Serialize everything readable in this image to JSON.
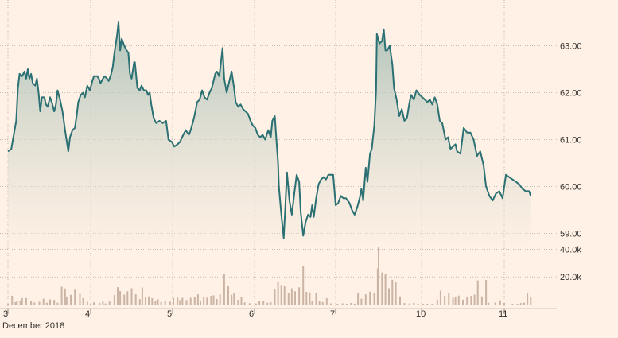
{
  "chart_data": {
    "type": "area",
    "title": "",
    "xlabel": "",
    "ylabel": "",
    "x_ticks": [
      "3",
      "4",
      "5",
      "6",
      "7",
      "10",
      "11"
    ],
    "x_period_label": "December 2018",
    "y_ticks": [
      "59.00",
      "60.00",
      "61.00",
      "62.00",
      "63.00"
    ],
    "ylim": [
      58.6,
      63.55
    ],
    "grid": true,
    "colors": {
      "line": "#2b7173",
      "fill_top": "#a5bdb3",
      "fill_bottom": "#f6ebe0",
      "volume": "#cbb4a4",
      "background": "#fff1e5"
    },
    "price": [
      [
        0.0,
        60.75
      ],
      [
        0.04,
        60.8
      ],
      [
        0.07,
        61.1
      ],
      [
        0.1,
        61.4
      ],
      [
        0.12,
        62.1
      ],
      [
        0.14,
        62.4
      ],
      [
        0.17,
        62.35
      ],
      [
        0.2,
        62.45
      ],
      [
        0.22,
        62.3
      ],
      [
        0.24,
        62.5
      ],
      [
        0.26,
        62.3
      ],
      [
        0.28,
        62.4
      ],
      [
        0.3,
        62.2
      ],
      [
        0.33,
        62.15
      ],
      [
        0.35,
        62.3
      ],
      [
        0.37,
        62.0
      ],
      [
        0.39,
        61.6
      ],
      [
        0.41,
        61.9
      ],
      [
        0.44,
        61.9
      ],
      [
        0.46,
        61.75
      ],
      [
        0.48,
        61.7
      ],
      [
        0.51,
        61.9
      ],
      [
        0.53,
        61.8
      ],
      [
        0.56,
        61.6
      ],
      [
        0.58,
        61.75
      ],
      [
        0.6,
        62.05
      ],
      [
        0.63,
        61.85
      ],
      [
        0.66,
        61.6
      ],
      [
        0.69,
        61.2
      ],
      [
        0.73,
        60.75
      ],
      [
        0.75,
        61.05
      ],
      [
        0.78,
        61.2
      ],
      [
        0.81,
        61.25
      ],
      [
        0.83,
        61.5
      ],
      [
        0.85,
        61.8
      ],
      [
        0.88,
        61.95
      ],
      [
        0.91,
        62.0
      ],
      [
        0.93,
        61.9
      ],
      [
        0.96,
        62.15
      ],
      [
        0.99,
        62.05
      ],
      [
        1.02,
        62.25
      ],
      [
        1.04,
        62.35
      ],
      [
        1.08,
        62.35
      ],
      [
        1.1,
        62.3
      ],
      [
        1.12,
        62.2
      ],
      [
        1.15,
        62.3
      ],
      [
        1.17,
        62.35
      ],
      [
        1.2,
        62.3
      ],
      [
        1.22,
        62.25
      ],
      [
        1.25,
        62.4
      ],
      [
        1.27,
        62.55
      ],
      [
        1.29,
        62.85
      ],
      [
        1.32,
        63.2
      ],
      [
        1.34,
        63.5
      ],
      [
        1.36,
        62.9
      ],
      [
        1.38,
        63.15
      ],
      [
        1.41,
        63.0
      ],
      [
        1.44,
        62.9
      ],
      [
        1.46,
        62.85
      ],
      [
        1.48,
        62.4
      ],
      [
        1.5,
        62.3
      ],
      [
        1.53,
        62.65
      ],
      [
        1.54,
        62.65
      ],
      [
        1.57,
        62.1
      ],
      [
        1.6,
        62.05
      ],
      [
        1.62,
        62.15
      ],
      [
        1.65,
        62.05
      ],
      [
        1.68,
        62.05
      ],
      [
        1.7,
        61.95
      ],
      [
        1.72,
        62.0
      ],
      [
        1.74,
        61.75
      ],
      [
        1.77,
        61.45
      ],
      [
        1.8,
        61.35
      ],
      [
        1.84,
        61.4
      ],
      [
        1.88,
        61.35
      ],
      [
        1.92,
        61.4
      ],
      [
        1.95,
        61.0
      ],
      [
        1.99,
        60.95
      ],
      [
        2.02,
        60.85
      ],
      [
        2.06,
        60.9
      ],
      [
        2.09,
        60.95
      ],
      [
        2.13,
        61.1
      ],
      [
        2.16,
        61.2
      ],
      [
        2.2,
        61.1
      ],
      [
        2.22,
        61.2
      ],
      [
        2.26,
        61.45
      ],
      [
        2.3,
        61.8
      ],
      [
        2.33,
        61.85
      ],
      [
        2.36,
        62.05
      ],
      [
        2.39,
        61.9
      ],
      [
        2.42,
        61.85
      ],
      [
        2.45,
        62.0
      ],
      [
        2.48,
        62.1
      ],
      [
        2.52,
        62.4
      ],
      [
        2.54,
        62.45
      ],
      [
        2.57,
        62.35
      ],
      [
        2.59,
        62.65
      ],
      [
        2.61,
        62.95
      ],
      [
        2.63,
        62.3
      ],
      [
        2.66,
        62.0
      ],
      [
        2.7,
        62.3
      ],
      [
        2.72,
        62.45
      ],
      [
        2.75,
        62.1
      ],
      [
        2.77,
        61.8
      ],
      [
        2.8,
        61.7
      ],
      [
        2.83,
        61.75
      ],
      [
        2.86,
        61.65
      ],
      [
        2.89,
        61.6
      ],
      [
        2.92,
        61.55
      ],
      [
        2.95,
        61.4
      ],
      [
        2.98,
        61.3
      ],
      [
        3.01,
        61.25
      ],
      [
        3.04,
        61.1
      ],
      [
        3.07,
        61.05
      ],
      [
        3.1,
        61.1
      ],
      [
        3.13,
        61.0
      ],
      [
        3.17,
        61.2
      ],
      [
        3.2,
        61.05
      ],
      [
        3.22,
        61.4
      ],
      [
        3.25,
        61.5
      ],
      [
        3.27,
        61.0
      ],
      [
        3.29,
        60.5
      ],
      [
        3.3,
        60.0
      ],
      [
        3.33,
        59.4
      ],
      [
        3.36,
        58.9
      ],
      [
        3.38,
        59.6
      ],
      [
        3.4,
        60.3
      ],
      [
        3.43,
        59.7
      ],
      [
        3.46,
        59.4
      ],
      [
        3.49,
        59.85
      ],
      [
        3.52,
        60.25
      ],
      [
        3.55,
        60.1
      ],
      [
        3.57,
        59.45
      ],
      [
        3.6,
        58.95
      ],
      [
        3.63,
        59.25
      ],
      [
        3.66,
        59.4
      ],
      [
        3.69,
        59.35
      ],
      [
        3.71,
        59.6
      ],
      [
        3.73,
        59.35
      ],
      [
        3.76,
        59.75
      ],
      [
        3.79,
        60.05
      ],
      [
        3.82,
        60.15
      ],
      [
        3.85,
        60.2
      ],
      [
        3.88,
        60.15
      ],
      [
        3.91,
        60.25
      ],
      [
        3.94,
        60.25
      ],
      [
        3.97,
        60.25
      ],
      [
        4.0,
        59.6
      ],
      [
        4.03,
        59.65
      ],
      [
        4.06,
        59.8
      ],
      [
        4.09,
        59.75
      ],
      [
        4.12,
        59.75
      ],
      [
        4.16,
        59.65
      ],
      [
        4.19,
        59.5
      ],
      [
        4.22,
        59.4
      ],
      [
        4.25,
        59.55
      ],
      [
        4.28,
        59.75
      ],
      [
        4.3,
        59.95
      ],
      [
        4.32,
        59.7
      ],
      [
        4.35,
        60.4
      ],
      [
        4.37,
        60.1
      ],
      [
        4.4,
        60.7
      ],
      [
        4.42,
        60.8
      ],
      [
        4.45,
        61.3
      ],
      [
        4.47,
        62.05
      ],
      [
        4.48,
        63.25
      ],
      [
        4.51,
        63.05
      ],
      [
        4.54,
        63.1
      ],
      [
        4.56,
        63.35
      ],
      [
        4.58,
        62.9
      ],
      [
        4.6,
        62.9
      ],
      [
        4.63,
        63.0
      ],
      [
        4.66,
        62.6
      ],
      [
        4.68,
        62.1
      ],
      [
        4.71,
        61.85
      ],
      [
        4.74,
        61.5
      ],
      [
        4.77,
        61.65
      ],
      [
        4.8,
        61.4
      ],
      [
        4.83,
        61.45
      ],
      [
        4.86,
        61.8
      ],
      [
        4.88,
        61.95
      ],
      [
        4.91,
        61.85
      ],
      [
        4.94,
        62.05
      ],
      [
        4.98,
        61.95
      ],
      [
        5.01,
        61.9
      ],
      [
        5.04,
        61.85
      ],
      [
        5.07,
        61.8
      ],
      [
        5.1,
        61.85
      ],
      [
        5.13,
        61.75
      ],
      [
        5.16,
        61.9
      ],
      [
        5.19,
        61.75
      ],
      [
        5.22,
        61.4
      ],
      [
        5.25,
        61.35
      ],
      [
        5.29,
        61.0
      ],
      [
        5.32,
        61.05
      ],
      [
        5.35,
        60.8
      ],
      [
        5.38,
        60.85
      ],
      [
        5.41,
        60.9
      ],
      [
        5.43,
        60.75
      ],
      [
        5.47,
        60.7
      ],
      [
        5.51,
        61.25
      ],
      [
        5.55,
        61.15
      ],
      [
        5.59,
        61.15
      ],
      [
        5.63,
        61.0
      ],
      [
        5.67,
        60.65
      ],
      [
        5.71,
        60.75
      ],
      [
        5.75,
        60.45
      ],
      [
        5.78,
        60.0
      ],
      [
        5.82,
        59.8
      ],
      [
        5.86,
        59.7
      ],
      [
        5.9,
        59.85
      ],
      [
        5.94,
        59.9
      ],
      [
        5.98,
        59.75
      ],
      [
        6.02,
        60.25
      ],
      [
        6.06,
        60.2
      ],
      [
        6.1,
        60.15
      ],
      [
        6.14,
        60.1
      ],
      [
        6.18,
        60.05
      ],
      [
        6.22,
        59.95
      ],
      [
        6.26,
        59.9
      ],
      [
        6.3,
        59.9
      ],
      [
        6.32,
        59.8
      ]
    ],
    "volume_ticks": [
      "20.0k",
      "40.0k"
    ],
    "volume_max": 42000,
    "volume": [
      [
        0.0,
        500
      ],
      [
        0.05,
        6400
      ],
      [
        0.09,
        1800
      ],
      [
        0.11,
        2900
      ],
      [
        0.15,
        3000
      ],
      [
        0.17,
        4700
      ],
      [
        0.22,
        4700
      ],
      [
        0.28,
        2600
      ],
      [
        0.32,
        1500
      ],
      [
        0.38,
        2100
      ],
      [
        0.43,
        4200
      ],
      [
        0.47,
        1300
      ],
      [
        0.51,
        3700
      ],
      [
        0.56,
        3400
      ],
      [
        0.6,
        1300
      ],
      [
        0.65,
        12900
      ],
      [
        0.69,
        11600
      ],
      [
        0.71,
        5800
      ],
      [
        0.76,
        7100
      ],
      [
        0.81,
        10800
      ],
      [
        0.87,
        7700
      ],
      [
        0.91,
        4700
      ],
      [
        0.96,
        2000
      ],
      [
        1.0,
        600
      ],
      [
        1.04,
        1600
      ],
      [
        1.11,
        1100
      ],
      [
        1.15,
        2100
      ],
      [
        1.18,
        800
      ],
      [
        1.23,
        2200
      ],
      [
        1.29,
        6900
      ],
      [
        1.33,
        12600
      ],
      [
        1.36,
        9700
      ],
      [
        1.41,
        7200
      ],
      [
        1.45,
        9600
      ],
      [
        1.5,
        11800
      ],
      [
        1.55,
        7500
      ],
      [
        1.6,
        3900
      ],
      [
        1.63,
        12400
      ],
      [
        1.67,
        5400
      ],
      [
        1.71,
        5900
      ],
      [
        1.75,
        4600
      ],
      [
        1.79,
        2900
      ],
      [
        1.82,
        3800
      ],
      [
        1.86,
        1800
      ],
      [
        1.91,
        2800
      ],
      [
        1.97,
        2100
      ],
      [
        2.01,
        4800
      ],
      [
        2.06,
        5000
      ],
      [
        2.09,
        3200
      ],
      [
        2.12,
        4900
      ],
      [
        2.17,
        3300
      ],
      [
        2.22,
        4900
      ],
      [
        2.27,
        5700
      ],
      [
        2.31,
        7400
      ],
      [
        2.34,
        2800
      ],
      [
        2.38,
        5400
      ],
      [
        2.42,
        5000
      ],
      [
        2.47,
        6300
      ],
      [
        2.5,
        6700
      ],
      [
        2.54,
        4000
      ],
      [
        2.58,
        7300
      ],
      [
        2.63,
        22100
      ],
      [
        2.68,
        13500
      ],
      [
        2.72,
        7100
      ],
      [
        2.75,
        8300
      ],
      [
        2.8,
        3400
      ],
      [
        2.84,
        5200
      ],
      [
        2.88,
        1600
      ],
      [
        2.94,
        1000
      ],
      [
        3.02,
        700
      ],
      [
        3.06,
        2900
      ],
      [
        3.11,
        2300
      ],
      [
        3.16,
        1300
      ],
      [
        3.2,
        1700
      ],
      [
        3.25,
        11100
      ],
      [
        3.29,
        16400
      ],
      [
        3.33,
        14200
      ],
      [
        3.37,
        13800
      ],
      [
        3.42,
        8400
      ],
      [
        3.46,
        11700
      ],
      [
        3.5,
        9600
      ],
      [
        3.55,
        12500
      ],
      [
        3.6,
        28000
      ],
      [
        3.64,
        9200
      ],
      [
        3.68,
        8800
      ],
      [
        3.71,
        2700
      ],
      [
        3.76,
        8300
      ],
      [
        3.8,
        2500
      ],
      [
        3.84,
        1800
      ],
      [
        3.89,
        4600
      ],
      [
        3.94,
        800
      ],
      [
        4.02,
        400
      ],
      [
        4.08,
        900
      ],
      [
        4.13,
        600
      ],
      [
        4.18,
        1200
      ],
      [
        4.22,
        700
      ],
      [
        4.26,
        8300
      ],
      [
        4.3,
        4300
      ],
      [
        4.35,
        7400
      ],
      [
        4.4,
        9300
      ],
      [
        4.45,
        8300
      ],
      [
        4.49,
        26100
      ],
      [
        4.5,
        41500
      ],
      [
        4.54,
        23200
      ],
      [
        4.58,
        22400
      ],
      [
        4.62,
        11800
      ],
      [
        4.66,
        17900
      ],
      [
        4.7,
        16600
      ],
      [
        4.75,
        5900
      ],
      [
        4.8,
        1100
      ],
      [
        4.86,
        800
      ],
      [
        4.91,
        1200
      ],
      [
        4.96,
        600
      ],
      [
        5.02,
        400
      ],
      [
        5.07,
        400
      ],
      [
        5.13,
        600
      ],
      [
        5.19,
        3700
      ],
      [
        5.23,
        10100
      ],
      [
        5.28,
        6200
      ],
      [
        5.33,
        8600
      ],
      [
        5.38,
        4800
      ],
      [
        5.41,
        5300
      ],
      [
        5.45,
        6500
      ],
      [
        5.5,
        3500
      ],
      [
        5.55,
        5200
      ],
      [
        5.6,
        6300
      ],
      [
        5.64,
        7200
      ],
      [
        5.68,
        17500
      ],
      [
        5.73,
        5900
      ],
      [
        5.78,
        17800
      ],
      [
        5.81,
        1300
      ],
      [
        5.89,
        1400
      ],
      [
        5.95,
        3100
      ],
      [
        6.0,
        1200
      ],
      [
        6.1,
        600
      ],
      [
        6.16,
        500
      ],
      [
        6.2,
        1100
      ],
      [
        6.24,
        1400
      ],
      [
        6.28,
        8000
      ],
      [
        6.32,
        5300
      ]
    ]
  }
}
